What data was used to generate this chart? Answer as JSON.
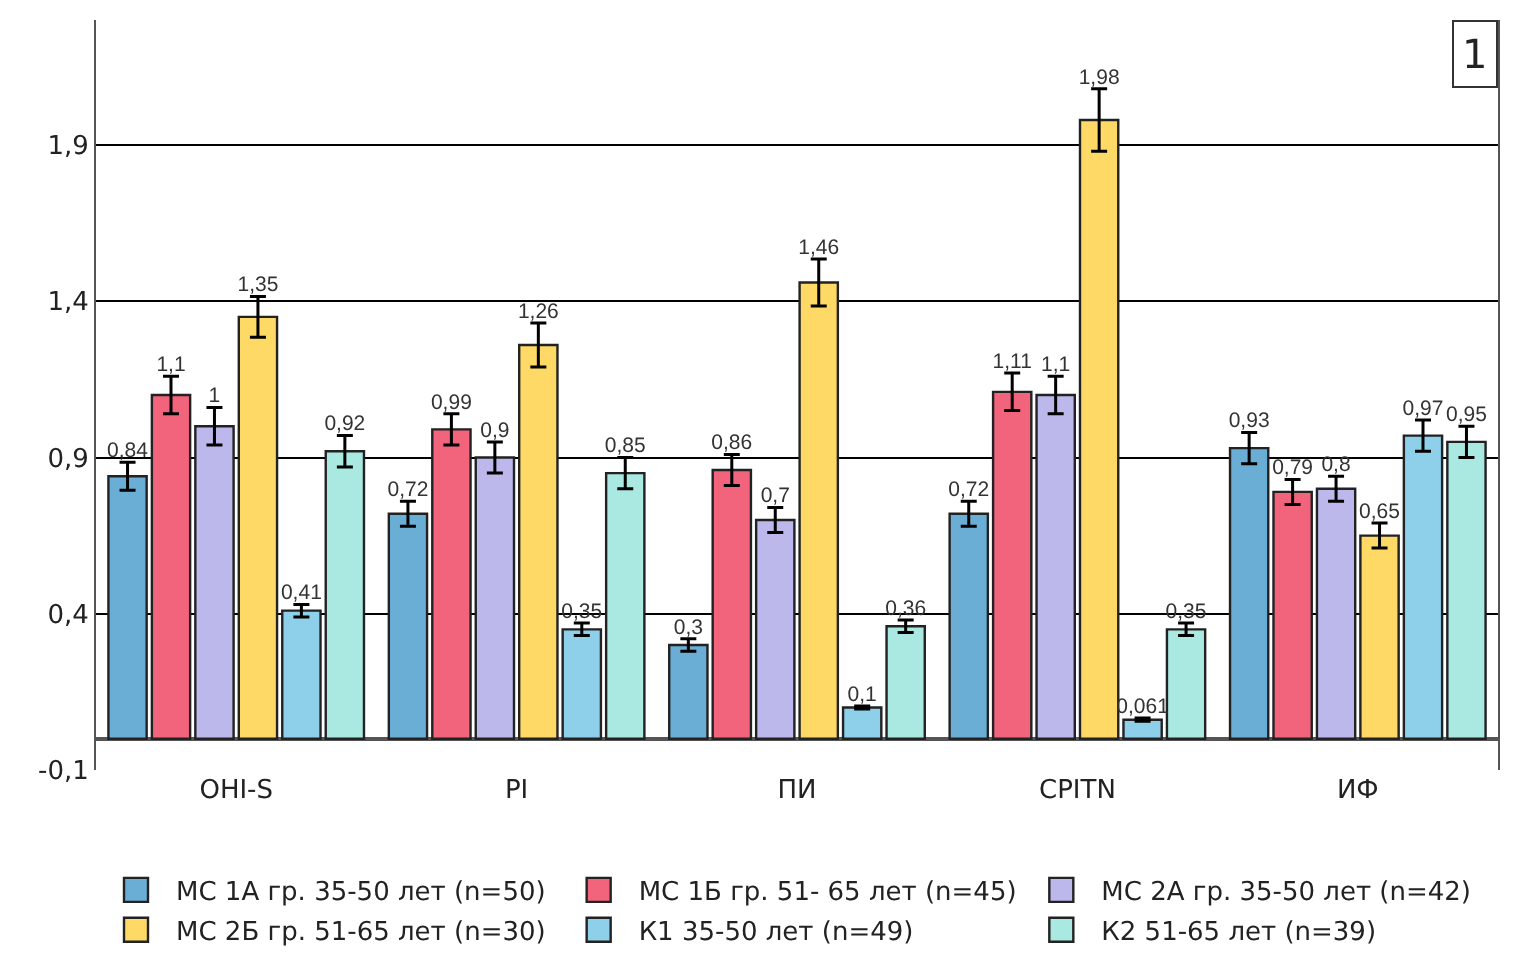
{
  "chart_data": {
    "type": "bar",
    "categories": [
      "OHI-S",
      "PI",
      "ПИ",
      "CPITN",
      "ИФ"
    ],
    "series": [
      {
        "name": "МС 1А гр. 35-50 лет (n=50)",
        "color": "#6aaed6",
        "values": [
          0.84,
          0.72,
          0.3,
          0.72,
          0.93
        ],
        "value_labels": [
          "0,84",
          "0,72",
          "0,3",
          "0,72",
          "0,93"
        ],
        "errors": [
          0.045,
          0.04,
          0.02,
          0.04,
          0.05
        ]
      },
      {
        "name": "МС 1Б гр. 51- 65 лет (n=45)",
        "color": "#f2637c",
        "values": [
          1.1,
          0.99,
          0.86,
          1.11,
          0.79
        ],
        "value_labels": [
          "1,1",
          "0,99",
          "0,86",
          "1,11",
          "0,79"
        ],
        "errors": [
          0.06,
          0.05,
          0.05,
          0.06,
          0.04
        ]
      },
      {
        "name": "МС 2А гр. 35-50 лет (n=42)",
        "color": "#bcb8ec",
        "values": [
          1,
          0.9,
          0.7,
          1.1,
          0.8
        ],
        "value_labels": [
          "1",
          "0,9",
          "0,7",
          "1,1",
          "0,8"
        ],
        "errors": [
          0.06,
          0.05,
          0.04,
          0.06,
          0.04
        ]
      },
      {
        "name": "МС 2Б гр. 51-65 лет (n=30)",
        "color": "#ffd966",
        "values": [
          1.35,
          1.26,
          1.46,
          1.98,
          0.65
        ],
        "value_labels": [
          "1,35",
          "1,26",
          "1,46",
          "1,98",
          "0,65"
        ],
        "errors": [
          0.065,
          0.07,
          0.075,
          0.1,
          0.04
        ]
      },
      {
        "name": "К1 35-50 лет (n=49)",
        "color": "#8ecfea",
        "values": [
          0.41,
          0.35,
          0.1,
          0.061,
          0.97
        ],
        "value_labels": [
          "0,41",
          "0,35",
          "0,1",
          "0,061",
          "0,97"
        ],
        "errors": [
          0.02,
          0.02,
          0.005,
          0.005,
          0.05
        ]
      },
      {
        "name": "К2 51-65 лет (n=39)",
        "color": "#a9e9e1",
        "values": [
          0.92,
          0.85,
          0.36,
          0.35,
          0.95
        ],
        "value_labels": [
          "0,92",
          "0,85",
          "0,36",
          "0,35",
          "0,95"
        ],
        "errors": [
          0.05,
          0.05,
          0.02,
          0.02,
          0.05
        ]
      }
    ],
    "ylim": [
      -0.1,
      2.3
    ],
    "yticks": [
      {
        "value": -0.1,
        "label": "-0,1"
      },
      {
        "value": 0.4,
        "label": "0,4"
      },
      {
        "value": 0.9,
        "label": "0,9"
      },
      {
        "value": 1.4,
        "label": "1,4"
      },
      {
        "value": 1.9,
        "label": "1,9"
      }
    ],
    "grid": "y",
    "data_labels": true,
    "legend": "bottom",
    "annotations": [
      "1"
    ]
  }
}
